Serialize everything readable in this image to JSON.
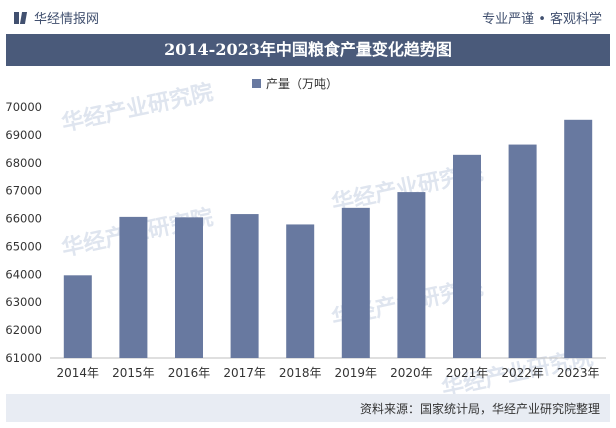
{
  "header": {
    "brand": "华经情报网",
    "slogan": "专业严谨 • 客观科学"
  },
  "title": "2014-2023年中国粮食产量变化趋势图",
  "footer": {
    "source": "资料来源：国家统计局，华经产业研究院整理"
  },
  "watermark": "华经产业研究院",
  "chart_data": {
    "type": "bar",
    "categories": [
      "2014年",
      "2015年",
      "2016年",
      "2017年",
      "2018年",
      "2019年",
      "2020年",
      "2021年",
      "2022年",
      "2023年"
    ],
    "series": [
      {
        "name": "产量（万吨）",
        "values": [
          63965,
          66060,
          66044,
          66161,
          65789,
          66384,
          66949,
          68285,
          68653,
          69541
        ],
        "color": "#6879a0"
      }
    ],
    "ylim": [
      61000,
      70000
    ],
    "yticks": [
      61000,
      62000,
      63000,
      64000,
      65000,
      66000,
      67000,
      68000,
      69000,
      70000
    ],
    "grid": false,
    "legend": "top-center"
  }
}
